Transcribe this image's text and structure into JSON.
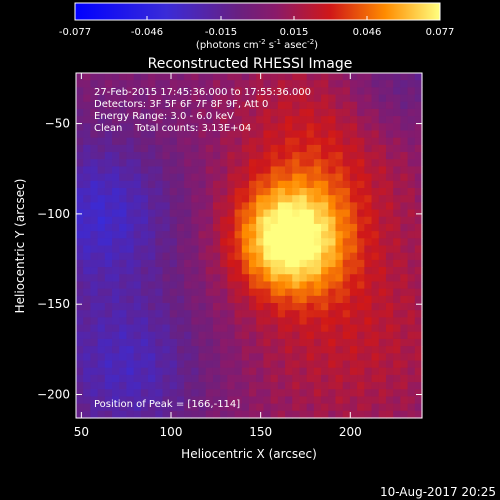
{
  "chart_data": {
    "type": "heatmap",
    "title": "Reconstructed RHESSI Image",
    "xlabel": "Heliocentric X (arcsec)",
    "ylabel": "Heliocentric Y (arcsec)",
    "xlim": [
      47,
      240
    ],
    "ylim": [
      -213,
      -22
    ],
    "xticks": [
      50,
      100,
      150,
      200
    ],
    "yticks": [
      -50,
      -100,
      -150,
      -200
    ],
    "colorbar": {
      "min": -0.077,
      "max": 0.077,
      "ticks": [
        "-0.077",
        "-0.046",
        "-0.015",
        "0.015",
        "0.046",
        "0.077"
      ],
      "label_parts": [
        "(photons cm",
        "-2",
        " s",
        "-1",
        " asec",
        "-2",
        ")"
      ]
    },
    "annotations": [
      "27-Feb-2015 17:45:36.000 to 17:55:36.000",
      "Detectors: 3F 5F 6F 7F 8F 9F, Att 0",
      "Energy Range: 3.0 - 6.0 keV",
      "Clean    Total counts: 3.13E+04"
    ],
    "peak_label": "Position of Peak = [166,-114]",
    "peak": {
      "x": 166,
      "y": -114,
      "value": 0.077
    },
    "timestamp": "10-Aug-2017 20:25",
    "emission_regions": [
      {
        "x": 166,
        "y": -114,
        "sigma": 22,
        "amp": 0.072
      },
      {
        "x": 185,
        "y": -60,
        "sigma": 38,
        "amp": 0.028
      },
      {
        "x": 200,
        "y": -165,
        "sigma": 45,
        "amp": 0.022
      },
      {
        "x": 60,
        "y": -100,
        "sigma": 30,
        "amp": -0.035
      },
      {
        "x": 75,
        "y": -185,
        "sigma": 30,
        "amp": -0.03
      },
      {
        "x": 225,
        "y": -30,
        "sigma": 25,
        "amp": -0.02
      }
    ]
  }
}
